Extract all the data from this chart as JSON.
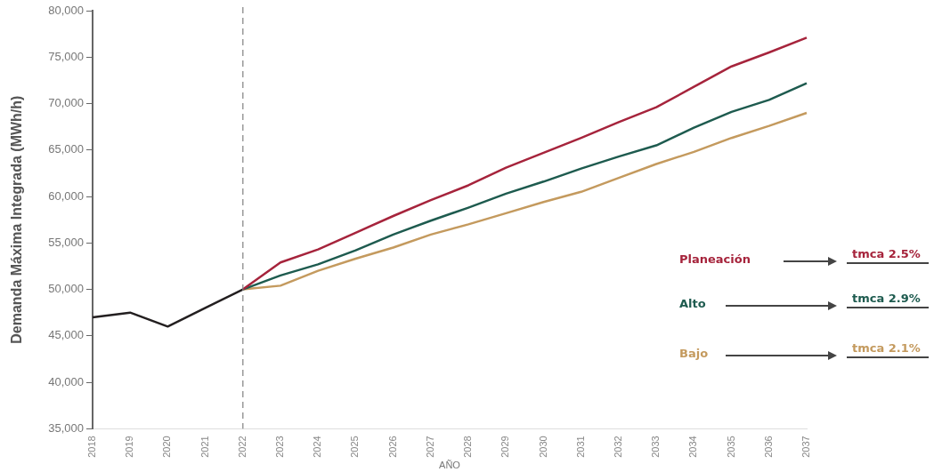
{
  "chart_data": {
    "type": "line",
    "xlabel": "AÑO",
    "ylabel": "Demanda Máxima Integrada (MWh/h)",
    "categories": [
      "2018",
      "2019",
      "2020",
      "2021",
      "2022",
      "2023",
      "2024",
      "2025",
      "2026",
      "2027",
      "2028",
      "2029",
      "2030",
      "2031",
      "2032",
      "2033",
      "2034",
      "2035",
      "2036",
      "2037"
    ],
    "series": [
      {
        "color": "#231f20",
        "values": [
          47000,
          47500,
          46000,
          48000,
          50000,
          null,
          null,
          null,
          null,
          null,
          null,
          null,
          null,
          null,
          null,
          null,
          null,
          null,
          null,
          null
        ]
      },
      {
        "name": "Planeación",
        "color": "#a6243c",
        "values": [
          null,
          null,
          null,
          null,
          50000,
          52900,
          54300,
          56100,
          57900,
          59600,
          61200,
          63100,
          64700,
          66300,
          68000,
          69600,
          71800,
          74000,
          75500,
          77100
        ]
      },
      {
        "name": "Alto",
        "color": "#1e5b4f",
        "values": [
          null,
          null,
          null,
          null,
          50000,
          51500,
          52700,
          54200,
          55900,
          57400,
          58800,
          60300,
          61600,
          63000,
          64300,
          65500,
          67400,
          69100,
          70400,
          72200
        ]
      },
      {
        "name": "Bajo",
        "color": "#c49a5e",
        "values": [
          null,
          null,
          null,
          null,
          50000,
          50400,
          52000,
          53300,
          54500,
          55900,
          57000,
          58200,
          59400,
          60500,
          62000,
          63500,
          64800,
          66300,
          67600,
          69000
        ]
      }
    ],
    "ylim": [
      35000,
      80000
    ],
    "yticks": [
      {
        "value": 35000,
        "label": "35,000"
      },
      {
        "value": 40000,
        "label": "40,000"
      },
      {
        "value": 45000,
        "label": "45,000"
      },
      {
        "value": 50000,
        "label": "50,000"
      },
      {
        "value": 55000,
        "label": "55,000"
      },
      {
        "value": 60000,
        "label": "60,000"
      },
      {
        "value": 65000,
        "label": "65,000"
      },
      {
        "value": 70000,
        "label": "70,000"
      },
      {
        "value": 75000,
        "label": "75,000"
      },
      {
        "value": 80000,
        "label": "80,000"
      }
    ],
    "ref_lines": [
      {
        "axis": "x",
        "value": "2022",
        "color": "#808080",
        "line_style": "dashed"
      }
    ],
    "annotations": [
      "tmca 2.5%",
      "tmca 2.9%",
      "tmca 2.1%"
    ],
    "legend": "right",
    "grid": false,
    "marker": "none",
    "line_style": "solid"
  }
}
